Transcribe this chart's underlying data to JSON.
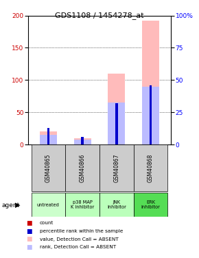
{
  "title": "GDS1108 / 1454278_at",
  "samples": [
    "GSM40865",
    "GSM40866",
    "GSM40867",
    "GSM40868"
  ],
  "agents": [
    "untreated",
    "p38 MAP\nK inhibitor",
    "JNK\ninhibitor",
    "ERK\ninhibitor"
  ],
  "agent_colors": [
    "#ccffcc",
    "#bbffbb",
    "#bbffbb",
    "#55dd55"
  ],
  "count_values": [
    5,
    3,
    6,
    7
  ],
  "rank_values": [
    13,
    6,
    32,
    46
  ],
  "absent_value_values": [
    20,
    10,
    110,
    192
  ],
  "absent_rank_values": [
    15,
    8,
    65,
    90
  ],
  "ylim_left": [
    0,
    200
  ],
  "ylim_right": [
    0,
    100
  ],
  "yticks_left": [
    0,
    50,
    100,
    150,
    200
  ],
  "yticks_right": [
    0,
    25,
    50,
    75,
    100
  ],
  "ytick_labels_right": [
    "0",
    "25",
    "50",
    "75",
    "100%"
  ],
  "color_count": "#cc0000",
  "color_rank": "#0000cc",
  "color_absent_value": "#ffbbbb",
  "color_absent_rank": "#bbbbff",
  "legend_labels": [
    "count",
    "percentile rank within the sample",
    "value, Detection Call = ABSENT",
    "rank, Detection Call = ABSENT"
  ]
}
